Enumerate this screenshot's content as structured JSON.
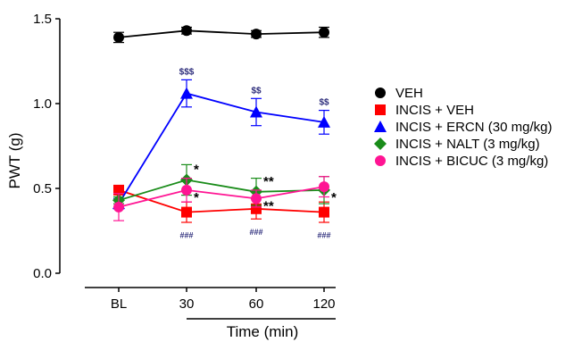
{
  "chart_data": {
    "type": "line",
    "xlabel": "Time (min)",
    "ylabel": "PWT (g)",
    "categories": [
      "BL",
      "30",
      "60",
      "120"
    ],
    "ylim": [
      0,
      1.5
    ],
    "yticks": [
      "0.0",
      "0.5",
      "1.0",
      "1.5"
    ],
    "grid": false,
    "legend_position": "right",
    "series": [
      {
        "name": "VEH",
        "color": "#000000",
        "marker": "circle",
        "values": [
          1.39,
          1.43,
          1.41,
          1.42
        ],
        "errors": [
          0.03,
          0.02,
          0.02,
          0.03
        ],
        "annotations": []
      },
      {
        "name": "INCIS + VEH",
        "color": "#ff0000",
        "marker": "square",
        "values": [
          0.49,
          0.36,
          0.38,
          0.36
        ],
        "errors": [
          0.02,
          0.06,
          0.06,
          0.06
        ],
        "annotations": [
          {
            "index": 1,
            "text": "###",
            "position": "below",
            "color": "#2b2b7a"
          },
          {
            "index": 2,
            "text": "###",
            "position": "below",
            "color": "#2b2b7a"
          },
          {
            "index": 3,
            "text": "###",
            "position": "below",
            "color": "#2b2b7a"
          }
        ]
      },
      {
        "name": "INCIS + ERCN (30 mg/kg)",
        "color": "#0000ff",
        "marker": "triangle",
        "values": [
          0.41,
          1.06,
          0.95,
          0.89
        ],
        "errors": [
          0.03,
          0.08,
          0.08,
          0.07
        ],
        "annotations": [
          {
            "index": 1,
            "text": "$$$",
            "position": "above",
            "color": "#2b2b7a"
          },
          {
            "index": 2,
            "text": "$$",
            "position": "above",
            "color": "#2b2b7a"
          },
          {
            "index": 3,
            "text": "$$",
            "position": "above",
            "color": "#2b2b7a"
          }
        ]
      },
      {
        "name": "INCIS + NALT (3 mg/kg)",
        "color": "#1a8c1a",
        "marker": "diamond",
        "values": [
          0.43,
          0.55,
          0.48,
          0.49
        ],
        "errors": [
          0.02,
          0.09,
          0.08,
          0.08
        ],
        "annotations": [
          {
            "index": 1,
            "text": "*",
            "position": "right",
            "color": "#000000"
          },
          {
            "index": 2,
            "text": "**",
            "position": "right",
            "color": "#000000"
          },
          {
            "index": 3,
            "text": "*",
            "position": "right-below",
            "color": "#000000"
          }
        ]
      },
      {
        "name": "INCIS + BICUC (3 mg/kg)",
        "color": "#ff1493",
        "marker": "circle",
        "values": [
          0.39,
          0.49,
          0.44,
          0.51
        ],
        "errors": [
          0.08,
          0.07,
          0.05,
          0.06
        ],
        "annotations": [
          {
            "index": 1,
            "text": "*",
            "position": "right-below",
            "color": "#000000"
          },
          {
            "index": 2,
            "text": "**",
            "position": "right-below",
            "color": "#000000"
          }
        ]
      }
    ]
  }
}
